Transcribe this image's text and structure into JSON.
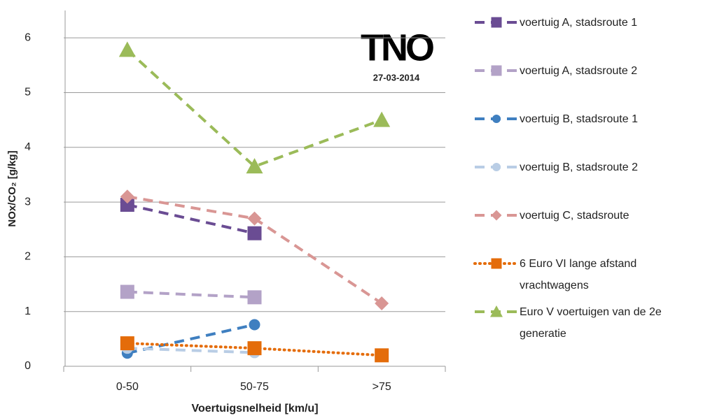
{
  "chart_data": {
    "type": "line",
    "ylabel": "NOx/CO₂ [g/kg]",
    "xlabel": "Voertuigsnelheid [km/u]",
    "annotations": [
      "TNO",
      "27-03-2014"
    ],
    "categories": [
      "0-50",
      "50-75",
      ">75"
    ],
    "ylim": [
      0,
      6.5
    ],
    "yticks": [
      0,
      1,
      2,
      3,
      4,
      5,
      6
    ],
    "grid": true,
    "legend": "right",
    "series": [
      {
        "name": "voertuig A, stadsroute 1",
        "color": "#6a4c93",
        "marker": "square",
        "line_style": "dashed",
        "values": [
          2.95,
          2.43,
          null
        ]
      },
      {
        "name": "voertuig A, stadsroute 2",
        "color": "#b3a2c7",
        "marker": "square",
        "line_style": "dashed",
        "values": [
          1.36,
          1.26,
          null
        ]
      },
      {
        "name": "voertuig B, stadsroute 1",
        "color": "#3f7fc0",
        "marker": "circle",
        "line_style": "dashed",
        "values": [
          0.24,
          0.76,
          null
        ]
      },
      {
        "name": "voertuig B, stadsroute 2",
        "color": "#b9cde5",
        "marker": "circle",
        "line_style": "dashed",
        "values": [
          0.33,
          0.25,
          null
        ]
      },
      {
        "name": "voertuig C, stadsroute",
        "color": "#d99694",
        "marker": "diamond",
        "line_style": "dashed",
        "values": [
          3.1,
          2.7,
          1.15
        ]
      },
      {
        "name": "6 Euro VI lange afstand vrachtwagens",
        "color": "#e46c0a",
        "marker": "square",
        "line_style": "dotted",
        "values": [
          0.42,
          0.33,
          0.2
        ]
      },
      {
        "name": "Euro V voertuigen van de 2e generatie",
        "color": "#9bbb59",
        "marker": "triangle",
        "line_style": "dashed",
        "values": [
          5.78,
          3.65,
          4.5
        ]
      }
    ]
  }
}
